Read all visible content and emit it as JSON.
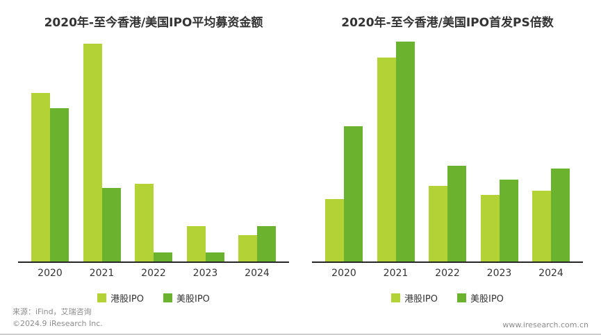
{
  "chart_data": [
    {
      "type": "bar",
      "title": "2020年-至今香港/美国IPO平均募资金额",
      "categories": [
        "2020",
        "2021",
        "2022",
        "2023",
        "2024"
      ],
      "series": [
        {
          "name": "港股IPO",
          "color": "#b2d235",
          "values": [
            76,
            98,
            35,
            16,
            12
          ]
        },
        {
          "name": "美股IPO",
          "color": "#6bb32e",
          "values": [
            69,
            33,
            4,
            4,
            16
          ]
        }
      ],
      "xlabel": "",
      "ylabel": "",
      "ylim": [
        0,
        100
      ],
      "grid": false,
      "legend_position": "bottom"
    },
    {
      "type": "bar",
      "title": "2020年-至今香港/美国IPO首发PS倍数",
      "categories": [
        "2020",
        "2021",
        "2022",
        "2023",
        "2024"
      ],
      "series": [
        {
          "name": "港股IPO",
          "color": "#b2d235",
          "values": [
            28,
            92,
            34,
            30,
            32
          ]
        },
        {
          "name": "美股IPO",
          "color": "#6bb32e",
          "values": [
            61,
            99,
            43,
            37,
            42
          ]
        }
      ],
      "xlabel": "",
      "ylabel": "",
      "ylim": [
        0,
        100
      ],
      "grid": false,
      "legend_position": "bottom"
    }
  ],
  "colors": {
    "series_hk": "#b2d235",
    "series_us": "#6bb32e",
    "axis": "#262626",
    "footer_text": "#8c8c8c"
  },
  "footer": {
    "source": "来源：iFind，艾瑞咨询",
    "copyright": "©2024.9 iResearch Inc.",
    "website": "www.iresearch.com.cn"
  }
}
